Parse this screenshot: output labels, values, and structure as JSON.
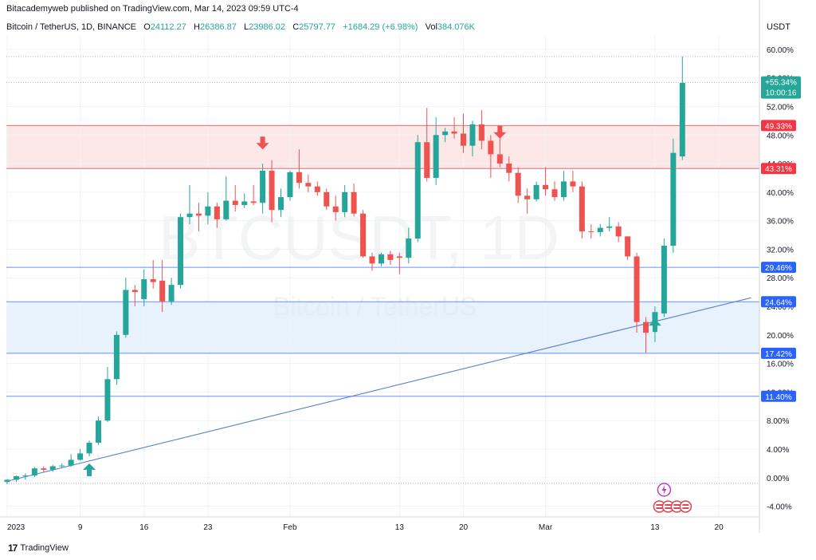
{
  "header": {
    "published": "Bitacademyweb published on TradingView.com, Mar 14, 2023 09:59 UTC-4"
  },
  "legend": {
    "symbol": "Bitcoin / TetherUS, 1D, BINANCE",
    "o_label": "O",
    "o_value": "24112.27",
    "h_label": "H",
    "h_value": "26386.87",
    "l_label": "L",
    "l_value": "23986.02",
    "c_label": "C",
    "c_value": "25797.77",
    "change": "+1684.29 (+6.98%)",
    "vol_label": "Vol",
    "vol_value": "384.076K"
  },
  "currency": "USDT",
  "watermark": {
    "ticker": "BTCUSDT, 1D",
    "name": "Bitcoin / TetherUS"
  },
  "footer": {
    "brand": "TradingView",
    "logo_text": "17"
  },
  "colors": {
    "up": "#26a69a",
    "down": "#ef5350",
    "level_red": "#f23645",
    "level_blue": "#2962ff",
    "trendline": "#5b7fcc",
    "red_zone": "#fde8e8",
    "blue_zone": "#e8f2fd"
  },
  "chart_data": {
    "type": "candlestick",
    "y_unit": "percent",
    "ylim": [
      -5.5,
      62
    ],
    "y_ticks": [
      {
        "value": 60,
        "label": "60.00%"
      },
      {
        "value": 56,
        "label": "56.00%"
      },
      {
        "value": 52,
        "label": "52.00%"
      },
      {
        "value": 48,
        "label": "48.00%"
      },
      {
        "value": 44,
        "label": "44.00%"
      },
      {
        "value": 40,
        "label": "40.00%"
      },
      {
        "value": 36,
        "label": "36.00%"
      },
      {
        "value": 32,
        "label": "32.00%"
      },
      {
        "value": 28,
        "label": "28.00%"
      },
      {
        "value": 24,
        "label": "24.00%"
      },
      {
        "value": 20,
        "label": "20.00%"
      },
      {
        "value": 16,
        "label": "16.00%"
      },
      {
        "value": 12,
        "label": "12.00%"
      },
      {
        "value": 8,
        "label": "8.00%"
      },
      {
        "value": 4,
        "label": "4.00%"
      },
      {
        "value": 0,
        "label": "0.00%"
      },
      {
        "value": -4,
        "label": "-4.00%"
      }
    ],
    "x_range": [
      "2023-01-01",
      "2023-03-23"
    ],
    "x_ticks": [
      {
        "date": "2023-01-01",
        "label": "2023"
      },
      {
        "date": "2023-01-09",
        "label": "9"
      },
      {
        "date": "2023-01-16",
        "label": "16"
      },
      {
        "date": "2023-01-23",
        "label": "23"
      },
      {
        "date": "2023-02-01",
        "label": "Feb"
      },
      {
        "date": "2023-02-13",
        "label": "13"
      },
      {
        "date": "2023-02-20",
        "label": "20"
      },
      {
        "date": "2023-03-01",
        "label": "Mar"
      },
      {
        "date": "2023-03-13",
        "label": "13"
      },
      {
        "date": "2023-03-20",
        "label": "20"
      }
    ],
    "levels": [
      {
        "value": 49.33,
        "label": "49.33%",
        "color": "red"
      },
      {
        "value": 43.31,
        "label": "43.31%",
        "color": "red"
      },
      {
        "value": 29.46,
        "label": "29.46%",
        "color": "blue"
      },
      {
        "value": 24.64,
        "label": "24.64%",
        "color": "blue"
      },
      {
        "value": 17.42,
        "label": "17.42%",
        "color": "blue"
      },
      {
        "value": 11.4,
        "label": "11.40%",
        "color": "blue"
      }
    ],
    "zones": [
      {
        "from": 43.31,
        "to": 49.33,
        "color": "red"
      },
      {
        "from": 17.42,
        "to": 24.64,
        "color": "blue"
      }
    ],
    "dotted_levels": [
      59,
      55.34,
      -0.8
    ],
    "trendline": [
      {
        "date": "2023-01-01",
        "value": -0.5
      },
      {
        "date": "2023-03-23",
        "value": 25.2
      }
    ],
    "current_price": {
      "value": 55.34,
      "label": "+55.34%",
      "countdown": "10:00:16"
    },
    "arrows": [
      {
        "date": "2023-01-10",
        "value": 1.0,
        "direction": "up"
      },
      {
        "date": "2023-01-29",
        "value": 47.0,
        "direction": "down"
      },
      {
        "date": "2023-02-24",
        "value": 48.5,
        "direction": "down"
      },
      {
        "date": "2023-03-13",
        "value": 21.2,
        "direction": "up"
      }
    ],
    "candles": [
      {
        "date": "2023-01-01",
        "o": -0.6,
        "h": -0.2,
        "l": -0.9,
        "c": -0.3
      },
      {
        "date": "2023-01-02",
        "o": -0.3,
        "h": 0.3,
        "l": -0.6,
        "c": 0.2
      },
      {
        "date": "2023-01-03",
        "o": 0.2,
        "h": 0.6,
        "l": -0.3,
        "c": 0.3
      },
      {
        "date": "2023-01-04",
        "o": 0.3,
        "h": 1.5,
        "l": 0.1,
        "c": 1.3
      },
      {
        "date": "2023-01-05",
        "o": 1.3,
        "h": 1.6,
        "l": 0.8,
        "c": 1.1
      },
      {
        "date": "2023-01-06",
        "o": 1.1,
        "h": 1.8,
        "l": 0.8,
        "c": 1.6
      },
      {
        "date": "2023-01-07",
        "o": 1.6,
        "h": 2.0,
        "l": 1.3,
        "c": 1.7
      },
      {
        "date": "2023-01-08",
        "o": 1.7,
        "h": 3.3,
        "l": 1.5,
        "c": 2.5
      },
      {
        "date": "2023-01-09",
        "o": 2.5,
        "h": 4.0,
        "l": 2.4,
        "c": 3.4
      },
      {
        "date": "2023-01-10",
        "o": 3.4,
        "h": 5.2,
        "l": 3.0,
        "c": 4.9
      },
      {
        "date": "2023-01-11",
        "o": 4.9,
        "h": 8.6,
        "l": 4.6,
        "c": 8.0
      },
      {
        "date": "2023-01-12",
        "o": 8.0,
        "h": 15.5,
        "l": 7.8,
        "c": 13.8
      },
      {
        "date": "2023-01-13",
        "o": 13.8,
        "h": 20.5,
        "l": 13.0,
        "c": 20.0
      },
      {
        "date": "2023-01-14",
        "o": 20.0,
        "h": 28.0,
        "l": 19.6,
        "c": 26.3
      },
      {
        "date": "2023-01-15",
        "o": 26.3,
        "h": 27.0,
        "l": 24.0,
        "c": 26.0
      },
      {
        "date": "2023-01-16",
        "o": 25.0,
        "h": 29.2,
        "l": 24.0,
        "c": 27.8
      },
      {
        "date": "2023-01-17",
        "o": 27.8,
        "h": 30.5,
        "l": 26.5,
        "c": 27.4
      },
      {
        "date": "2023-01-18",
        "o": 27.6,
        "h": 30.5,
        "l": 23.2,
        "c": 24.7
      },
      {
        "date": "2023-01-19",
        "o": 24.7,
        "h": 28.0,
        "l": 24.2,
        "c": 27.0
      },
      {
        "date": "2023-01-20",
        "o": 27.0,
        "h": 37.0,
        "l": 26.5,
        "c": 36.5
      },
      {
        "date": "2023-01-21",
        "o": 36.5,
        "h": 41.0,
        "l": 35.5,
        "c": 37.0
      },
      {
        "date": "2023-01-22",
        "o": 37.0,
        "h": 38.5,
        "l": 34.5,
        "c": 36.7
      },
      {
        "date": "2023-01-23",
        "o": 36.7,
        "h": 40.0,
        "l": 35.5,
        "c": 38.0
      },
      {
        "date": "2023-01-24",
        "o": 38.0,
        "h": 38.5,
        "l": 35.0,
        "c": 36.2
      },
      {
        "date": "2023-01-25",
        "o": 36.2,
        "h": 42.2,
        "l": 36.0,
        "c": 38.8
      },
      {
        "date": "2023-01-26",
        "o": 38.8,
        "h": 41.0,
        "l": 37.3,
        "c": 38.2
      },
      {
        "date": "2023-01-27",
        "o": 38.2,
        "h": 39.8,
        "l": 37.8,
        "c": 38.7
      },
      {
        "date": "2023-01-28",
        "o": 38.7,
        "h": 41.0,
        "l": 38.2,
        "c": 38.5
      },
      {
        "date": "2023-01-29",
        "o": 38.5,
        "h": 44.0,
        "l": 37.0,
        "c": 43.0
      },
      {
        "date": "2023-01-30",
        "o": 43.0,
        "h": 44.5,
        "l": 35.8,
        "c": 37.5
      },
      {
        "date": "2023-01-31",
        "o": 37.5,
        "h": 40.5,
        "l": 36.5,
        "c": 39.3
      },
      {
        "date": "2023-02-01",
        "o": 39.3,
        "h": 43.0,
        "l": 38.8,
        "c": 42.8
      },
      {
        "date": "2023-02-02",
        "o": 42.8,
        "h": 46.0,
        "l": 40.5,
        "c": 41.3
      },
      {
        "date": "2023-02-03",
        "o": 41.3,
        "h": 42.5,
        "l": 40.0,
        "c": 40.8
      },
      {
        "date": "2023-02-04",
        "o": 40.8,
        "h": 41.5,
        "l": 39.5,
        "c": 40.0
      },
      {
        "date": "2023-02-05",
        "o": 40.0,
        "h": 40.5,
        "l": 37.5,
        "c": 38.0
      },
      {
        "date": "2023-02-06",
        "o": 38.0,
        "h": 39.5,
        "l": 36.0,
        "c": 37.2
      },
      {
        "date": "2023-02-07",
        "o": 37.2,
        "h": 41.0,
        "l": 36.5,
        "c": 40.0
      },
      {
        "date": "2023-02-08",
        "o": 40.0,
        "h": 41.2,
        "l": 36.6,
        "c": 37.0
      },
      {
        "date": "2023-02-09",
        "o": 37.0,
        "h": 37.5,
        "l": 30.8,
        "c": 31.0
      },
      {
        "date": "2023-02-10",
        "o": 31.0,
        "h": 31.5,
        "l": 29.0,
        "c": 30.0
      },
      {
        "date": "2023-02-11",
        "o": 30.0,
        "h": 31.5,
        "l": 29.6,
        "c": 31.3
      },
      {
        "date": "2023-02-12",
        "o": 31.3,
        "h": 31.8,
        "l": 29.8,
        "c": 30.5
      },
      {
        "date": "2023-02-13",
        "o": 31.0,
        "h": 31.5,
        "l": 28.5,
        "c": 30.8
      },
      {
        "date": "2023-02-14",
        "o": 30.8,
        "h": 35.0,
        "l": 30.0,
        "c": 33.5
      },
      {
        "date": "2023-02-15",
        "o": 33.5,
        "h": 48.0,
        "l": 33.0,
        "c": 47.0
      },
      {
        "date": "2023-02-16",
        "o": 47.0,
        "h": 51.8,
        "l": 41.5,
        "c": 42.0
      },
      {
        "date": "2023-02-17",
        "o": 42.0,
        "h": 50.5,
        "l": 41.0,
        "c": 48.0
      },
      {
        "date": "2023-02-18",
        "o": 48.0,
        "h": 49.0,
        "l": 47.0,
        "c": 48.5
      },
      {
        "date": "2023-02-19",
        "o": 48.5,
        "h": 50.5,
        "l": 47.5,
        "c": 48.2
      },
      {
        "date": "2023-02-20",
        "o": 48.2,
        "h": 51.0,
        "l": 45.5,
        "c": 46.5
      },
      {
        "date": "2023-02-21",
        "o": 46.5,
        "h": 50.0,
        "l": 45.0,
        "c": 49.5
      },
      {
        "date": "2023-02-22",
        "o": 49.5,
        "h": 51.5,
        "l": 46.0,
        "c": 47.2
      },
      {
        "date": "2023-02-23",
        "o": 47.2,
        "h": 48.0,
        "l": 42.0,
        "c": 45.3
      },
      {
        "date": "2023-02-24",
        "o": 45.3,
        "h": 48.0,
        "l": 43.5,
        "c": 44.0
      },
      {
        "date": "2023-02-25",
        "o": 44.0,
        "h": 45.0,
        "l": 41.5,
        "c": 42.7
      },
      {
        "date": "2023-02-26",
        "o": 42.7,
        "h": 43.5,
        "l": 38.5,
        "c": 39.5
      },
      {
        "date": "2023-02-27",
        "o": 39.5,
        "h": 40.5,
        "l": 37.0,
        "c": 39.0
      },
      {
        "date": "2023-02-28",
        "o": 39.0,
        "h": 41.5,
        "l": 38.7,
        "c": 41.0
      },
      {
        "date": "2023-03-01",
        "o": 41.0,
        "h": 43.5,
        "l": 39.5,
        "c": 40.4
      },
      {
        "date": "2023-03-02",
        "o": 40.4,
        "h": 41.5,
        "l": 38.8,
        "c": 39.3
      },
      {
        "date": "2023-03-03",
        "o": 39.3,
        "h": 43.0,
        "l": 38.8,
        "c": 41.5
      },
      {
        "date": "2023-03-04",
        "o": 41.5,
        "h": 43.0,
        "l": 40.0,
        "c": 40.8
      },
      {
        "date": "2023-03-05",
        "o": 40.8,
        "h": 41.5,
        "l": 33.5,
        "c": 34.5
      },
      {
        "date": "2023-03-06",
        "o": 34.5,
        "h": 35.5,
        "l": 33.5,
        "c": 34.4
      },
      {
        "date": "2023-03-07",
        "o": 34.4,
        "h": 35.5,
        "l": 33.8,
        "c": 35.0
      },
      {
        "date": "2023-03-08",
        "o": 35.0,
        "h": 36.5,
        "l": 34.5,
        "c": 35.2
      },
      {
        "date": "2023-03-09",
        "o": 35.2,
        "h": 35.8,
        "l": 33.0,
        "c": 33.8
      },
      {
        "date": "2023-03-10",
        "o": 33.8,
        "h": 33.8,
        "l": 30.5,
        "c": 31.0
      },
      {
        "date": "2023-03-11",
        "o": 31.0,
        "h": 31.5,
        "l": 20.3,
        "c": 21.8
      },
      {
        "date": "2023-03-12",
        "o": 21.8,
        "h": 22.5,
        "l": 17.5,
        "c": 20.3
      },
      {
        "date": "2023-03-13",
        "o": 21.5,
        "h": 24.0,
        "l": 19.0,
        "c": 23.2
      },
      {
        "date": "2023-03-14",
        "o": 23.0,
        "h": 33.5,
        "l": 22.5,
        "c": 32.5
      },
      {
        "date": "2023-03-15",
        "o": 32.5,
        "h": 47.5,
        "l": 31.5,
        "c": 45.5
      },
      {
        "date": "2023-03-16",
        "o": 45.0,
        "h": 59.0,
        "l": 44.5,
        "c": 55.3
      }
    ]
  }
}
